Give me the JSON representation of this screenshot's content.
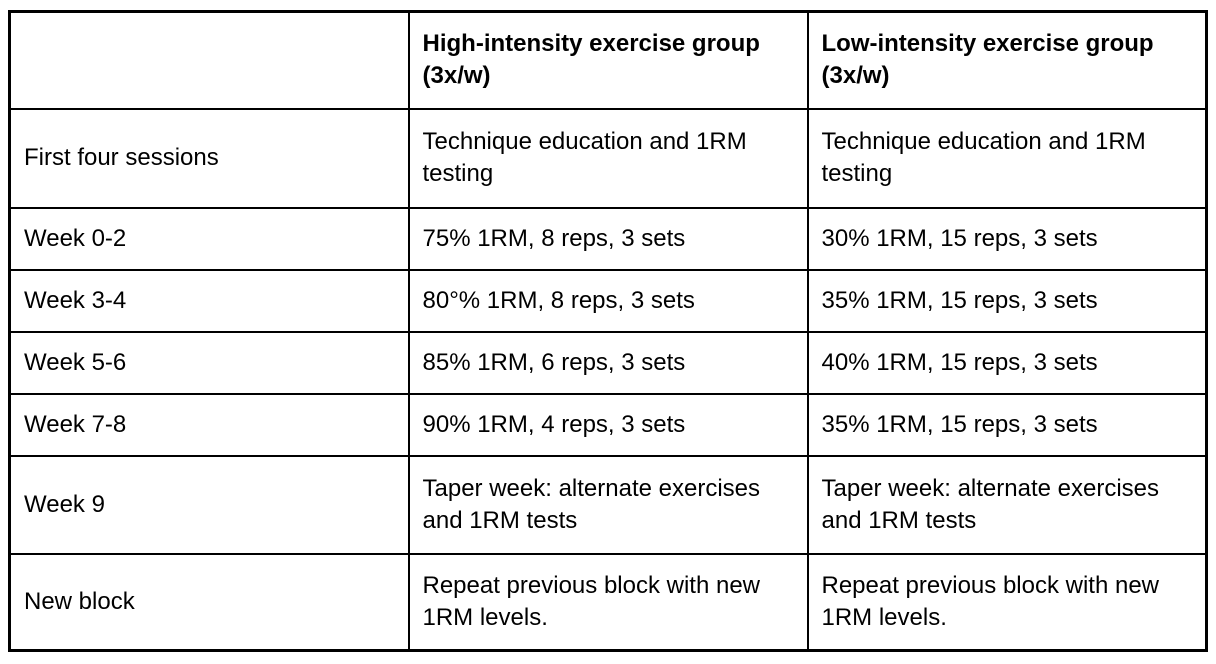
{
  "table": {
    "columns": {
      "label_header": "",
      "high_header": "High-intensity exercise group (3x/w)",
      "low_header": "Low-intensity exercise group (3x/w)"
    },
    "rows": [
      {
        "label": "First four sessions",
        "high": "Technique education and 1RM testing",
        "low": "Technique education and 1RM testing"
      },
      {
        "label": "Week 0-2",
        "high": "75% 1RM, 8 reps, 3 sets",
        "low": "30% 1RM, 15 reps, 3 sets"
      },
      {
        "label": "Week 3-4",
        "high": "80°% 1RM, 8 reps, 3 sets",
        "low": "35% 1RM, 15 reps, 3 sets"
      },
      {
        "label": "Week 5-6",
        "high": "85% 1RM, 6 reps, 3 sets",
        "low": "40% 1RM, 15 reps, 3 sets"
      },
      {
        "label": "Week 7-8",
        "high": "90% 1RM, 4 reps, 3 sets",
        "low": "35% 1RM, 15 reps, 3 sets"
      },
      {
        "label": "Week 9",
        "high": "Taper week: alternate exercises and 1RM tests",
        "low": "Taper week: alternate exercises and 1RM tests"
      },
      {
        "label": "New block",
        "high": "Repeat previous block with new 1RM levels.",
        "low": "Repeat previous block with new 1RM levels."
      }
    ],
    "colors": {
      "border": "#000000",
      "background": "#ffffff",
      "text": "#000000"
    }
  }
}
